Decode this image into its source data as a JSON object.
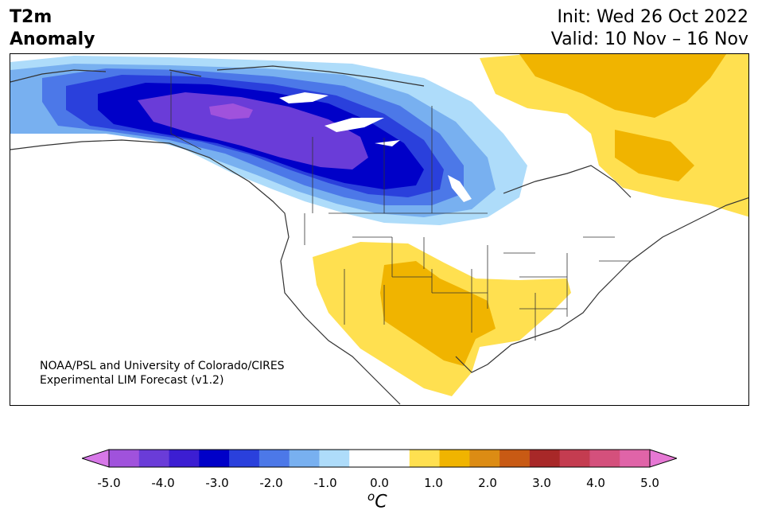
{
  "title": {
    "line1": "T2m",
    "line2": "Anomaly"
  },
  "init": "Init: Wed 26 Oct 2022",
  "valid": "Valid: 10 Nov – 16 Nov",
  "credit": {
    "line1": "NOAA/PSL and University of Colorado/CIRES",
    "line2": "Experimental LIM Forecast (v1.2)"
  },
  "colorbar": {
    "unit_prefix": "o",
    "unit_main": "C",
    "ticks": [
      "-5.0",
      "-4.0",
      "-3.0",
      "-2.0",
      "-1.0",
      "0.0",
      "1.0",
      "2.0",
      "3.0",
      "4.0",
      "5.0"
    ],
    "tick_values": [
      -5,
      -4,
      -3,
      -2,
      -1,
      0,
      1,
      2,
      3,
      4,
      5
    ],
    "min": -5.0,
    "max": 5.0,
    "extend": "both",
    "colors": [
      "#d778e8",
      "#a052dc",
      "#6a3cd8",
      "#3c1ed2",
      "#0000c8",
      "#2a40dc",
      "#4c78e8",
      "#78b0f0",
      "#aedcfa",
      "#ffffff",
      "#ffffff",
      "#ffe050",
      "#f0b400",
      "#dc8c14",
      "#c85a14",
      "#a82828",
      "#c43c50",
      "#d4507c",
      "#e064a8",
      "#e678d4"
    ]
  },
  "legend_colors": {
    "cold_extreme": "#a052dc",
    "cold_strong": "#0000c8",
    "cold_moderate": "#2a40dc",
    "cold_weak": "#78b0f0",
    "cold_slight": "#aedcfa",
    "warm_slight": "#ffe050",
    "warm_moderate": "#f0b400",
    "warm_strong": "#dc8c14"
  }
}
